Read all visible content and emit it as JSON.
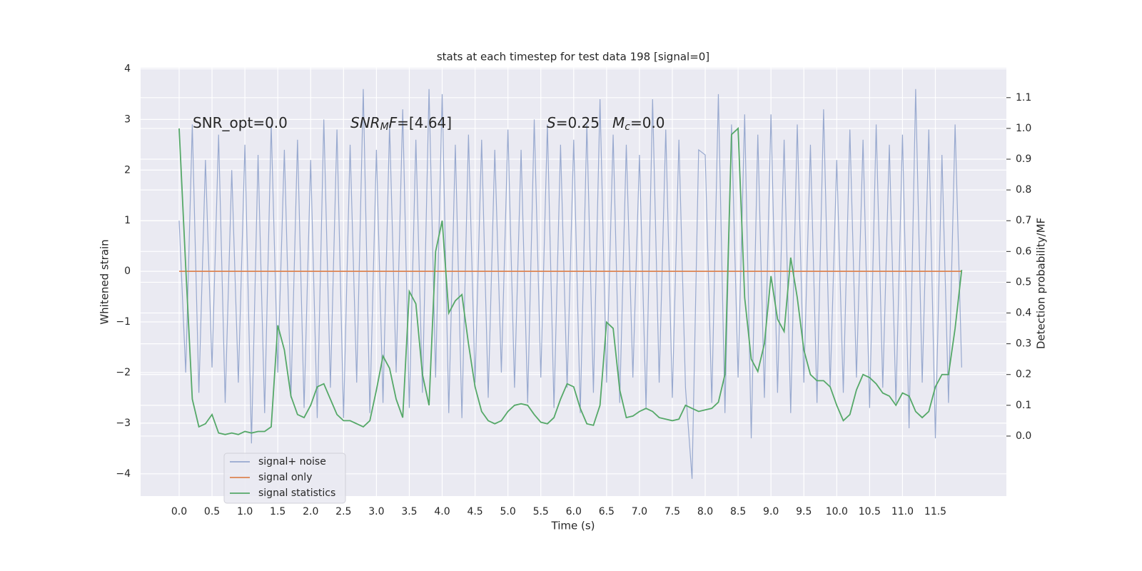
{
  "chart_data": {
    "type": "line",
    "title": "stats at each timestep for test data 198 [signal=0]",
    "xlabel": "Time (s)",
    "ylabel": "Whitened strain",
    "y2label": "Detection probability/MF",
    "xlim": [
      -0.586,
      12.58
    ],
    "ylim": [
      -4.44,
      4.02
    ],
    "y2lim": [
      -0.195,
      1.197
    ],
    "xticks": [
      {
        "value": 0,
        "label": "0.0"
      },
      0.5,
      {
        "value": 1,
        "label": "1.0"
      },
      1.5,
      {
        "value": 2,
        "label": "2.0"
      },
      2.5,
      {
        "value": 3,
        "label": "3.0"
      },
      3.5,
      {
        "value": 4,
        "label": "4.0"
      },
      4.5,
      {
        "value": 5,
        "label": "5.0"
      },
      5.5,
      {
        "value": 6,
        "label": "6.0"
      },
      6.5,
      {
        "value": 7,
        "label": "7.0"
      },
      7.5,
      {
        "value": 8,
        "label": "8.0"
      },
      8.5,
      {
        "value": 9,
        "label": "9.0"
      },
      9.5,
      {
        "value": 10,
        "label": "10.0"
      },
      10.5,
      {
        "value": 11,
        "label": "11.0"
      },
      11.5
    ],
    "yticks": [
      {
        "value": -4,
        "label": "−4"
      },
      {
        "value": -3,
        "label": "−3"
      },
      {
        "value": -2,
        "label": "−2"
      },
      {
        "value": -1,
        "label": "−1"
      },
      0,
      1,
      2,
      3,
      4
    ],
    "y2ticks": [
      {
        "value": 0,
        "label": "0.0"
      },
      0.1,
      0.2,
      0.3,
      0.4,
      0.5,
      0.6,
      0.7,
      0.8,
      0.9,
      {
        "value": 1,
        "label": "1.0"
      },
      1.1
    ],
    "grid": true,
    "legend": "lower left",
    "annotations": [
      {
        "parts": [
          {
            "text": "SNR_opt=0.0",
            "style": "normal"
          }
        ]
      },
      {
        "parts": [
          {
            "text": "SNR",
            "style": "italic"
          },
          {
            "text": "M",
            "style": "italic-sub"
          },
          {
            "text": "F",
            "style": "italic"
          },
          {
            "text": "=[4.64]",
            "style": "normal"
          }
        ]
      },
      {
        "parts": [
          {
            "text": "S",
            "style": "italic"
          },
          {
            "text": "=0.25",
            "style": "normal"
          }
        ]
      },
      {
        "parts": [
          {
            "text": "M",
            "style": "italic"
          },
          {
            "text": "c",
            "style": "italic-sub"
          },
          {
            "text": "=0.0",
            "style": "normal"
          }
        ]
      }
    ],
    "x": [
      0,
      0.1,
      0.2,
      0.3,
      0.4,
      0.5,
      0.6,
      0.7,
      0.8,
      0.9,
      1,
      1.1,
      1.2,
      1.3,
      1.4,
      1.5,
      1.6,
      1.7,
      1.8,
      1.9,
      2,
      2.1,
      2.2,
      2.3,
      2.4,
      2.5,
      2.6,
      2.7,
      2.8,
      2.9,
      3,
      3.1,
      3.2,
      3.3,
      3.4,
      3.5,
      3.6,
      3.7,
      3.8,
      3.9,
      4,
      4.1,
      4.2,
      4.3,
      4.4,
      4.5,
      4.6,
      4.7,
      4.8,
      4.9,
      5,
      5.1,
      5.2,
      5.3,
      5.4,
      5.5,
      5.6,
      5.7,
      5.8,
      5.9,
      6,
      6.1,
      6.2,
      6.3,
      6.4,
      6.5,
      6.6,
      6.7,
      6.8,
      6.9,
      7,
      7.1,
      7.2,
      7.3,
      7.4,
      7.5,
      7.6,
      7.7,
      7.8,
      7.9,
      8,
      8.1,
      8.2,
      8.3,
      8.4,
      8.5,
      8.6,
      8.7,
      8.8,
      8.9,
      9,
      9.1,
      9.2,
      9.3,
      9.4,
      9.5,
      9.6,
      9.7,
      9.8,
      9.9,
      10,
      10.1,
      10.2,
      10.3,
      10.4,
      10.5,
      10.6,
      10.7,
      10.8,
      10.9,
      11,
      11.1,
      11.2,
      11.3,
      11.4,
      11.5,
      11.6,
      11.7,
      11.8,
      11.9
    ],
    "series": [
      {
        "name": "signal+ noise",
        "color": "#98a9cf",
        "values": [
          1.0,
          -2.0,
          2.9,
          -2.4,
          2.2,
          -1.9,
          2.7,
          -2.6,
          2.0,
          -2.2,
          2.5,
          -3.4,
          2.3,
          -2.8,
          2.9,
          -2.0,
          2.4,
          -2.5,
          2.6,
          -2.7,
          2.2,
          -2.9,
          3.0,
          -2.3,
          2.8,
          -2.9,
          2.5,
          -2.2,
          3.6,
          -2.8,
          2.4,
          -2.6,
          2.9,
          -2.0,
          3.2,
          -2.7,
          2.6,
          -2.4,
          3.6,
          -2.1,
          3.5,
          -2.8,
          2.5,
          -2.9,
          2.7,
          -2.2,
          2.6,
          -2.5,
          2.4,
          -2.0,
          2.8,
          -2.3,
          2.4,
          -2.6,
          3.0,
          -2.1,
          2.9,
          -2.7,
          2.5,
          -2.3,
          2.6,
          -2.8,
          2.9,
          -2.4,
          3.4,
          -2.2,
          2.7,
          -2.6,
          2.5,
          -2.1,
          2.3,
          -2.7,
          3.4,
          -2.2,
          2.8,
          -2.5,
          2.6,
          -2.3,
          -4.1,
          2.4,
          2.3,
          -2.6,
          3.5,
          -2.8,
          2.9,
          -2.1,
          3.1,
          -3.3,
          2.7,
          -2.5,
          3.1,
          -2.4,
          2.6,
          -2.8,
          2.9,
          -2.2,
          2.5,
          -2.6,
          3.2,
          -2.3,
          2.2,
          -2.4,
          2.8,
          -2.1,
          2.6,
          -2.7,
          2.9,
          -2.3,
          2.5,
          -2.6,
          2.7,
          -3.1,
          3.6,
          -2.2,
          2.8,
          -3.3,
          2.3,
          -2.6,
          2.9,
          -1.9
        ]
      },
      {
        "name": "signal only",
        "color": "#dd8452",
        "values": [
          0,
          0,
          0,
          0,
          0,
          0,
          0,
          0,
          0,
          0,
          0,
          0,
          0,
          0,
          0,
          0,
          0,
          0,
          0,
          0,
          0,
          0,
          0,
          0,
          0,
          0,
          0,
          0,
          0,
          0,
          0,
          0,
          0,
          0,
          0,
          0,
          0,
          0,
          0,
          0,
          0,
          0,
          0,
          0,
          0,
          0,
          0,
          0,
          0,
          0,
          0,
          0,
          0,
          0,
          0,
          0,
          0,
          0,
          0,
          0,
          0,
          0,
          0,
          0,
          0,
          0,
          0,
          0,
          0,
          0,
          0,
          0,
          0,
          0,
          0,
          0,
          0,
          0,
          0,
          0,
          0,
          0,
          0,
          0,
          0,
          0,
          0,
          0,
          0,
          0,
          0,
          0,
          0,
          0,
          0,
          0,
          0,
          0,
          0,
          0,
          0,
          0,
          0,
          0,
          0,
          0,
          0,
          0,
          0,
          0,
          0,
          0,
          0,
          0,
          0,
          0,
          0,
          0,
          0,
          0
        ]
      },
      {
        "name": "signal statistics",
        "color": "#55a868",
        "axis": "y2",
        "values": [
          1.0,
          0.55,
          0.12,
          0.03,
          0.04,
          0.07,
          0.01,
          0.005,
          0.01,
          0.005,
          0.015,
          0.01,
          0.015,
          0.015,
          0.03,
          0.36,
          0.28,
          0.13,
          0.07,
          0.06,
          0.1,
          0.16,
          0.17,
          0.12,
          0.07,
          0.05,
          0.05,
          0.04,
          0.03,
          0.05,
          0.15,
          0.26,
          0.22,
          0.12,
          0.06,
          0.47,
          0.43,
          0.2,
          0.1,
          0.6,
          0.7,
          0.4,
          0.44,
          0.46,
          0.3,
          0.16,
          0.08,
          0.05,
          0.04,
          0.05,
          0.08,
          0.1,
          0.105,
          0.1,
          0.07,
          0.045,
          0.04,
          0.06,
          0.12,
          0.17,
          0.16,
          0.09,
          0.04,
          0.035,
          0.1,
          0.37,
          0.35,
          0.15,
          0.06,
          0.065,
          0.08,
          0.09,
          0.08,
          0.06,
          0.055,
          0.05,
          0.055,
          0.1,
          0.09,
          0.08,
          0.085,
          0.09,
          0.11,
          0.2,
          0.98,
          1.0,
          0.45,
          0.25,
          0.21,
          0.3,
          0.52,
          0.38,
          0.34,
          0.58,
          0.45,
          0.28,
          0.2,
          0.18,
          0.18,
          0.16,
          0.1,
          0.05,
          0.07,
          0.15,
          0.2,
          0.19,
          0.17,
          0.14,
          0.13,
          0.1,
          0.14,
          0.13,
          0.08,
          0.06,
          0.08,
          0.16,
          0.2,
          0.2,
          0.35,
          0.54
        ]
      }
    ]
  }
}
